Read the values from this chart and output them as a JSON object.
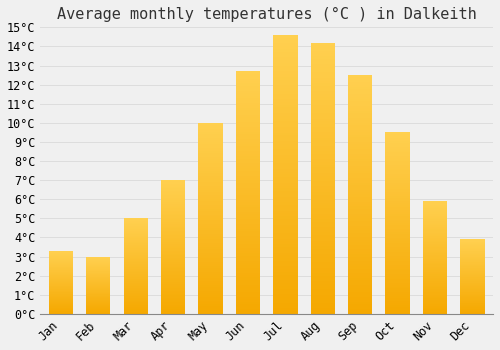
{
  "title": "Average monthly temperatures (°C ) in Dalkeith",
  "months": [
    "Jan",
    "Feb",
    "Mar",
    "Apr",
    "May",
    "Jun",
    "Jul",
    "Aug",
    "Sep",
    "Oct",
    "Nov",
    "Dec"
  ],
  "values": [
    3.3,
    3.0,
    5.0,
    7.0,
    10.0,
    12.7,
    14.6,
    14.2,
    12.5,
    9.5,
    5.9,
    3.9
  ],
  "bar_color_bottom": "#F5A800",
  "bar_color_top": "#FFD050",
  "ylim_min": 0,
  "ylim_max": 15,
  "ytick_step": 1,
  "background_color": "#F0F0F0",
  "grid_color": "#DDDDDD",
  "title_fontsize": 11,
  "tick_fontsize": 8.5,
  "bar_width": 0.65
}
